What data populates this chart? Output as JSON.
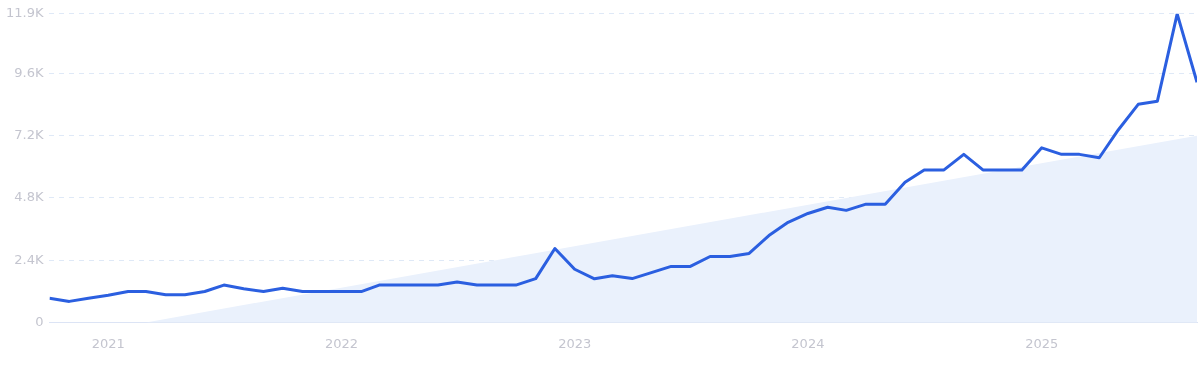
{
  "chart_data": {
    "type": "line",
    "x": [
      "2020-10",
      "2020-11",
      "2020-12",
      "2021-01",
      "2021-02",
      "2021-03",
      "2021-04",
      "2021-05",
      "2021-06",
      "2021-07",
      "2021-08",
      "2021-09",
      "2021-10",
      "2021-11",
      "2021-12",
      "2022-01",
      "2022-02",
      "2022-03",
      "2022-04",
      "2022-05",
      "2022-06",
      "2022-07",
      "2022-08",
      "2022-09",
      "2022-10",
      "2022-11",
      "2022-12",
      "2023-01",
      "2023-02",
      "2023-03",
      "2023-04",
      "2023-05",
      "2023-06",
      "2023-07",
      "2023-08",
      "2023-09",
      "2023-10",
      "2023-11",
      "2023-12",
      "2024-01",
      "2024-02",
      "2024-03",
      "2024-04",
      "2024-05",
      "2024-06",
      "2024-07",
      "2024-08",
      "2024-09",
      "2024-10",
      "2024-11",
      "2024-12",
      "2025-01",
      "2025-02",
      "2025-03",
      "2025-04",
      "2025-05",
      "2025-06",
      "2025-07",
      "2025-08",
      "2025-09"
    ],
    "series": [
      {
        "type": "area",
        "color": "#eaf1fc",
        "x": [
          "2021-03",
          "2025-09"
        ],
        "values": [
          0,
          7200
        ]
      },
      {
        "type": "line",
        "color": "#2b5fe0",
        "values": [
          930,
          810,
          930,
          1050,
          1190,
          1190,
          1070,
          1070,
          1190,
          1440,
          1300,
          1190,
          1320,
          1190,
          1190,
          1190,
          1190,
          1440,
          1440,
          1440,
          1440,
          1560,
          1440,
          1440,
          1440,
          1690,
          2850,
          2050,
          1680,
          1800,
          1690,
          1920,
          2160,
          2160,
          2540,
          2540,
          2660,
          3350,
          3860,
          4200,
          4440,
          4320,
          4560,
          4560,
          5400,
          5880,
          5880,
          6480,
          5880,
          5880,
          5880,
          6730,
          6480,
          6480,
          6350,
          7430,
          8410,
          8530,
          11900,
          9260
        ]
      }
    ],
    "xlim": [
      "2020-10",
      "2025-09"
    ],
    "xticks": [
      "2021",
      "2022",
      "2023",
      "2024",
      "2025"
    ],
    "ylim": [
      0,
      11900
    ],
    "yticks": [
      0,
      {
        "value": 2400,
        "label": "2.4K"
      },
      {
        "value": 4800,
        "label": "4.8K"
      },
      {
        "value": 7200,
        "label": "7.2K"
      },
      {
        "value": 9600,
        "label": "9.6K"
      },
      {
        "value": 11900,
        "label": "11.9K"
      }
    ],
    "grid": "y",
    "legend": false,
    "marker": "none"
  }
}
